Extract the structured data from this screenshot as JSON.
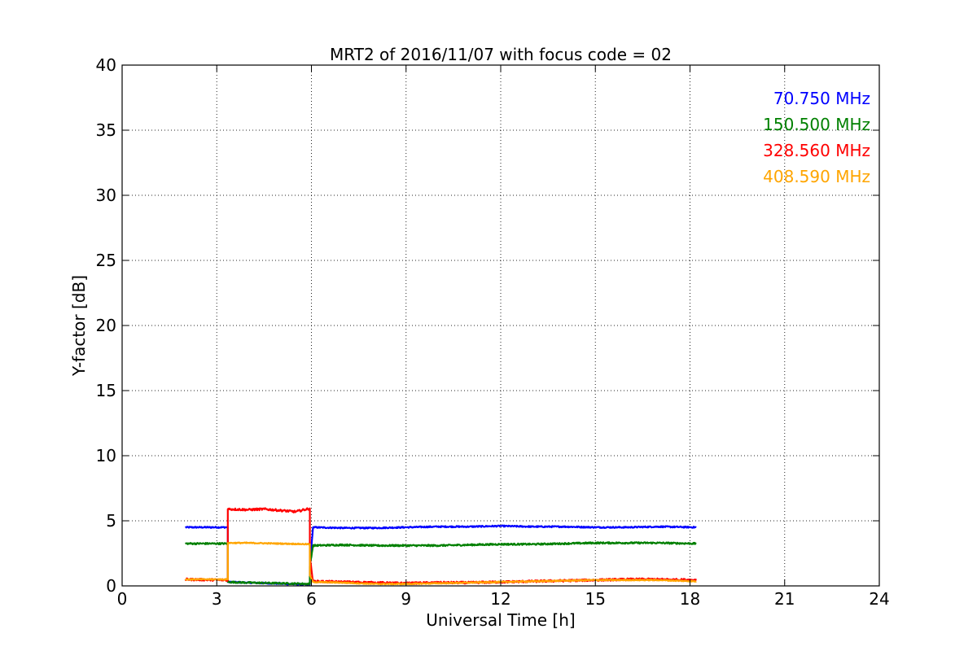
{
  "chart_data": {
    "type": "line",
    "title": "MRT2 of 2016/11/07 with focus code = 02",
    "xlabel": "Universal Time [h]",
    "ylabel": "Y-factor [dB]",
    "xlim": [
      0,
      24
    ],
    "ylim": [
      0,
      40
    ],
    "xticks": [
      0,
      3,
      6,
      9,
      12,
      15,
      18,
      21,
      24
    ],
    "yticks": [
      0,
      5,
      10,
      15,
      20,
      25,
      30,
      35,
      40
    ],
    "grid": true,
    "legend": "top-right",
    "series": [
      {
        "name": "70.750 MHz",
        "color": "#0000ff",
        "x": [
          2.0,
          3.35,
          3.35,
          5.95,
          5.95,
          6.0,
          6.05,
          7.0,
          8.0,
          9.0,
          10.0,
          11.0,
          12.0,
          13.0,
          14.0,
          15.0,
          16.0,
          17.0,
          18.2
        ],
        "y": [
          4.5,
          4.5,
          0.3,
          0.1,
          2.2,
          3.0,
          4.5,
          4.45,
          4.45,
          4.5,
          4.55,
          4.55,
          4.6,
          4.55,
          4.55,
          4.5,
          4.5,
          4.55,
          4.5
        ]
      },
      {
        "name": "150.500 MHz",
        "color": "#008000",
        "x": [
          2.0,
          3.35,
          3.35,
          4.0,
          5.0,
          5.95,
          5.95,
          6.05,
          7.0,
          8.0,
          9.0,
          10.0,
          11.0,
          12.0,
          13.0,
          14.0,
          15.0,
          16.0,
          17.0,
          18.2
        ],
        "y": [
          3.25,
          3.25,
          0.3,
          0.25,
          0.2,
          0.15,
          1.5,
          3.1,
          3.15,
          3.1,
          3.1,
          3.1,
          3.15,
          3.2,
          3.2,
          3.25,
          3.3,
          3.3,
          3.3,
          3.25
        ],
        "noise": 0.06
      },
      {
        "name": "328.560 MHz",
        "color": "#ff0000",
        "x": [
          2.0,
          3.35,
          3.35,
          4.0,
          4.5,
          5.0,
          5.5,
          5.95,
          5.95,
          6.05,
          7.0,
          8.0,
          9.0,
          10.0,
          11.0,
          12.0,
          13.0,
          14.0,
          15.0,
          16.0,
          17.0,
          18.2
        ],
        "y": [
          0.5,
          0.45,
          5.9,
          5.85,
          5.9,
          5.8,
          5.7,
          5.95,
          2.2,
          0.35,
          0.3,
          0.25,
          0.2,
          0.25,
          0.25,
          0.3,
          0.35,
          0.4,
          0.45,
          0.5,
          0.5,
          0.45
        ],
        "noise": 0.08
      },
      {
        "name": "408.590 MHz",
        "color": "#ffa500",
        "x": [
          2.0,
          3.35,
          3.35,
          4.0,
          5.0,
          5.95,
          5.95,
          6.05,
          7.0,
          8.0,
          9.0,
          10.0,
          11.0,
          12.0,
          13.0,
          14.0,
          15.0,
          16.0,
          17.0,
          18.2
        ],
        "y": [
          0.5,
          0.5,
          3.3,
          3.3,
          3.25,
          3.2,
          0.8,
          0.3,
          0.25,
          0.15,
          0.15,
          0.2,
          0.25,
          0.3,
          0.35,
          0.4,
          0.45,
          0.45,
          0.45,
          0.35
        ],
        "noise": 0.04
      }
    ]
  }
}
